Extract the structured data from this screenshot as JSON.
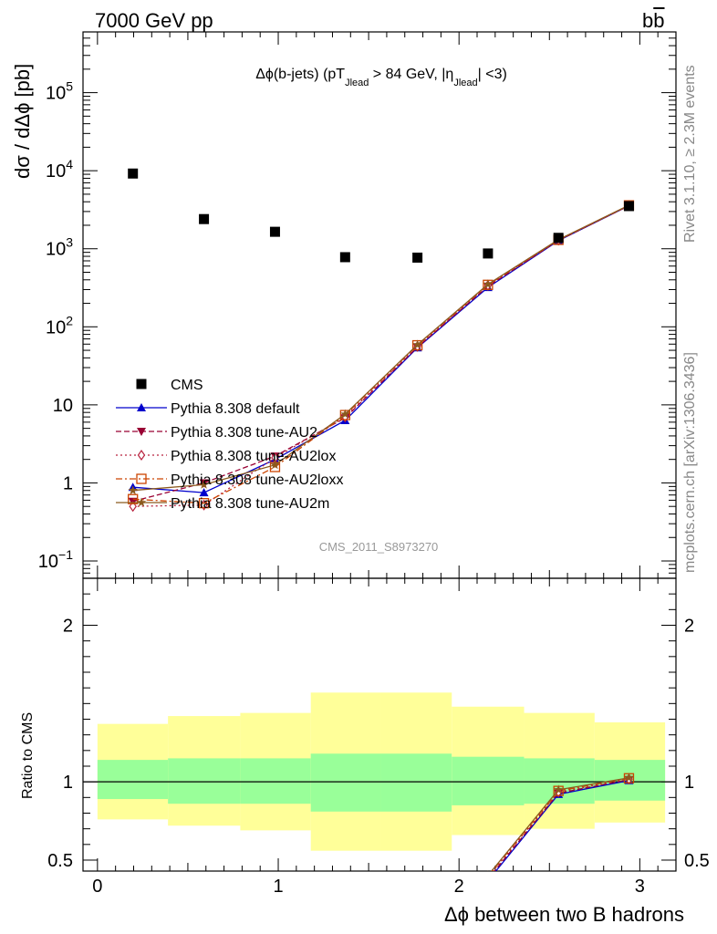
{
  "header": {
    "left": "7000 GeV pp",
    "right": "b",
    "right_bar": "b"
  },
  "side_labels": {
    "top": "Rivet 3.1.10, ≥ 2.3M events",
    "bottom": "mcplots.cern.ch [arXiv:1306.3436]"
  },
  "watermark": "CMS_2011_S8973270",
  "main_title": {
    "pre": "Δϕ(b-jets) (pT",
    "sub1": "Jlead",
    "mid": " >  84 GeV, |η",
    "sub2": "Jlead",
    "post": "| <3)"
  },
  "ylabel_main": "dσ / dΔϕ [pb]",
  "ylabel_ratio": "Ratio to CMS",
  "xlabel": "Δϕ between two B hadrons",
  "chart_data": {
    "type": "scatter",
    "title": "Δϕ(b-jets) (pT_Jlead > 84 GeV, |η_Jlead| <3)",
    "xlabel": "Δϕ between two B hadrons",
    "ylabel": "dσ / dΔϕ [pb]",
    "ylabel_ratio": "Ratio to CMS",
    "xlim": [
      -0.08,
      3.2
    ],
    "ylim": [
      0.06,
      600000
    ],
    "ylim_ratio": [
      0.43,
      2.3
    ],
    "yscale": "log",
    "x_ticks": [
      "0",
      "1",
      "2",
      "3"
    ],
    "y_ticks": [
      "10⁻¹",
      "1",
      "10",
      "10²",
      "10³",
      "10⁴",
      "10⁵"
    ],
    "ratio_ticks": [
      "0.5",
      "1",
      "2"
    ],
    "legend_position": "left",
    "bins": [
      [
        0.0,
        0.39
      ],
      [
        0.39,
        0.79
      ],
      [
        0.79,
        1.18
      ],
      [
        1.18,
        1.57
      ],
      [
        1.57,
        1.96
      ],
      [
        1.96,
        2.36
      ],
      [
        2.36,
        2.75
      ],
      [
        2.75,
        3.14
      ]
    ],
    "x": [
      0.196,
      0.589,
      0.982,
      1.37,
      1.77,
      2.16,
      2.55,
      2.94
    ],
    "cms": {
      "name": "CMS",
      "values": [
        9200,
        2400,
        1650,
        780,
        770,
        870,
        1380,
        3520
      ]
    },
    "band_inner": [
      [
        0.89,
        1.14
      ],
      [
        0.86,
        1.15
      ],
      [
        0.86,
        1.15
      ],
      [
        0.81,
        1.18
      ],
      [
        0.81,
        1.18
      ],
      [
        0.85,
        1.16
      ],
      [
        0.86,
        1.15
      ],
      [
        0.88,
        1.14
      ]
    ],
    "band_outer": [
      [
        0.76,
        1.37
      ],
      [
        0.72,
        1.42
      ],
      [
        0.69,
        1.44
      ],
      [
        0.56,
        1.57
      ],
      [
        0.56,
        1.57
      ],
      [
        0.66,
        1.48
      ],
      [
        0.7,
        1.44
      ],
      [
        0.74,
        1.38
      ]
    ],
    "series": [
      {
        "name": "Pythia 8.308 default",
        "color": "#0000cc",
        "marker": "triangle-up",
        "dash": "solid",
        "values": [
          0.88,
          0.75,
          2.0,
          6.3,
          54,
          320,
          1270,
          3550
        ]
      },
      {
        "name": "Pythia 8.308 tune-AU2",
        "color": "#990033",
        "marker": "triangle-down",
        "dash": "dashed",
        "values": [
          0.58,
          1.0,
          2.2,
          6.8,
          55,
          330,
          1280,
          3570
        ]
      },
      {
        "name": "Pythia 8.308 tune-AU2lox",
        "color": "#b8223e",
        "marker": "diamond-open",
        "dash": "dotted",
        "values": [
          0.5,
          0.52,
          2.1,
          7.0,
          56,
          340,
          1290,
          3580
        ]
      },
      {
        "name": "Pythia 8.308 tune-AU2loxx",
        "color": "#cc4400",
        "marker": "square-open",
        "dash": "dashdot",
        "values": [
          0.62,
          0.55,
          1.6,
          7.4,
          58,
          345,
          1300,
          3600
        ]
      },
      {
        "name": "Pythia 8.308 tune-AU2m",
        "color": "#8b5a1e",
        "marker": "star",
        "dash": "solid",
        "values": [
          0.8,
          0.95,
          1.7,
          7.6,
          59,
          350,
          1310,
          3610
        ]
      }
    ]
  }
}
